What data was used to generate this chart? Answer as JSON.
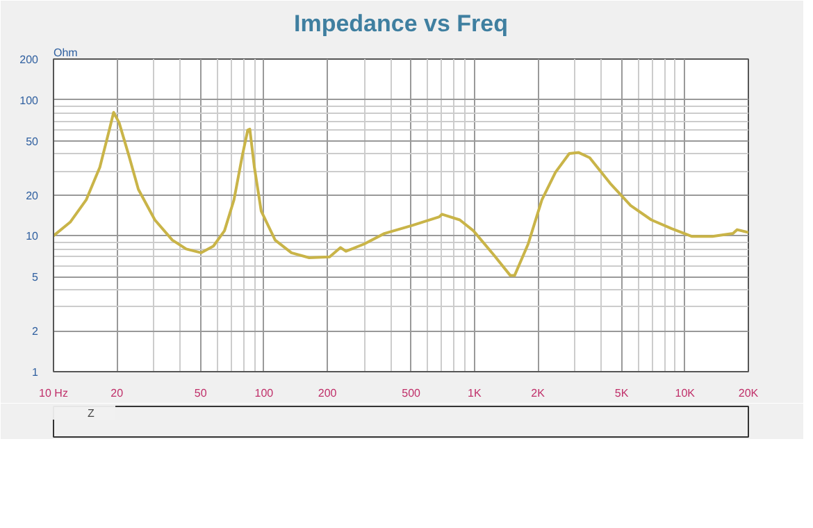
{
  "chart_data": {
    "type": "line",
    "title": "Impedance vs Freq",
    "ylabel": "Ohm",
    "log": "xy",
    "grid": true,
    "legend": "bottom",
    "marker": "none",
    "line_style": "solid",
    "xlim": [
      10,
      20000
    ],
    "ylim": [
      1,
      200
    ],
    "xticks": [
      {
        "value": 10,
        "label": "10 Hz"
      },
      20,
      50,
      100,
      200,
      500,
      {
        "value": 1000,
        "label": "1K"
      },
      {
        "value": 2000,
        "label": "2K"
      },
      {
        "value": 5000,
        "label": "5K"
      },
      {
        "value": 10000,
        "label": "10K"
      },
      {
        "value": 20000,
        "label": "20K"
      }
    ],
    "yticks": [
      1,
      2,
      5,
      10,
      20,
      50,
      100,
      200
    ],
    "x": [
      10,
      12,
      14.3,
      16.6,
      18.5,
      19.3,
      20.5,
      22.8,
      25.3,
      30.3,
      36.7,
      42.7,
      50.3,
      57.5,
      64.9,
      72,
      78.9,
      83.7,
      85.6,
      90,
      97,
      113,
      135,
      164,
      205,
      231,
      245,
      299,
      373,
      504,
      680,
      700,
      851,
      988,
      1237,
      1480,
      1550,
      1798,
      2090,
      2426,
      2820,
      3127,
      3524,
      4415,
      5520,
      6920,
      8650,
      10800,
      13500,
      16900,
      17700,
      20000
    ],
    "series": [
      {
        "name": "Z",
        "color": "#c9b448",
        "values": [
          10,
          12.6,
          18.4,
          32,
          62,
          81,
          68,
          39,
          22,
          13.1,
          9.3,
          8.0,
          7.5,
          8.4,
          10.9,
          18.4,
          39,
          60,
          61,
          32,
          15.2,
          9.3,
          7.5,
          6.9,
          7.0,
          8.2,
          7.7,
          8.7,
          10.4,
          11.9,
          13.8,
          14.4,
          13.1,
          10.9,
          7.2,
          5.1,
          5.1,
          8.7,
          18.4,
          29.4,
          40.3,
          41,
          37.6,
          24.3,
          16.7,
          13.1,
          11.3,
          9.9,
          9.9,
          10.4,
          11.1,
          10.6
        ]
      }
    ]
  }
}
